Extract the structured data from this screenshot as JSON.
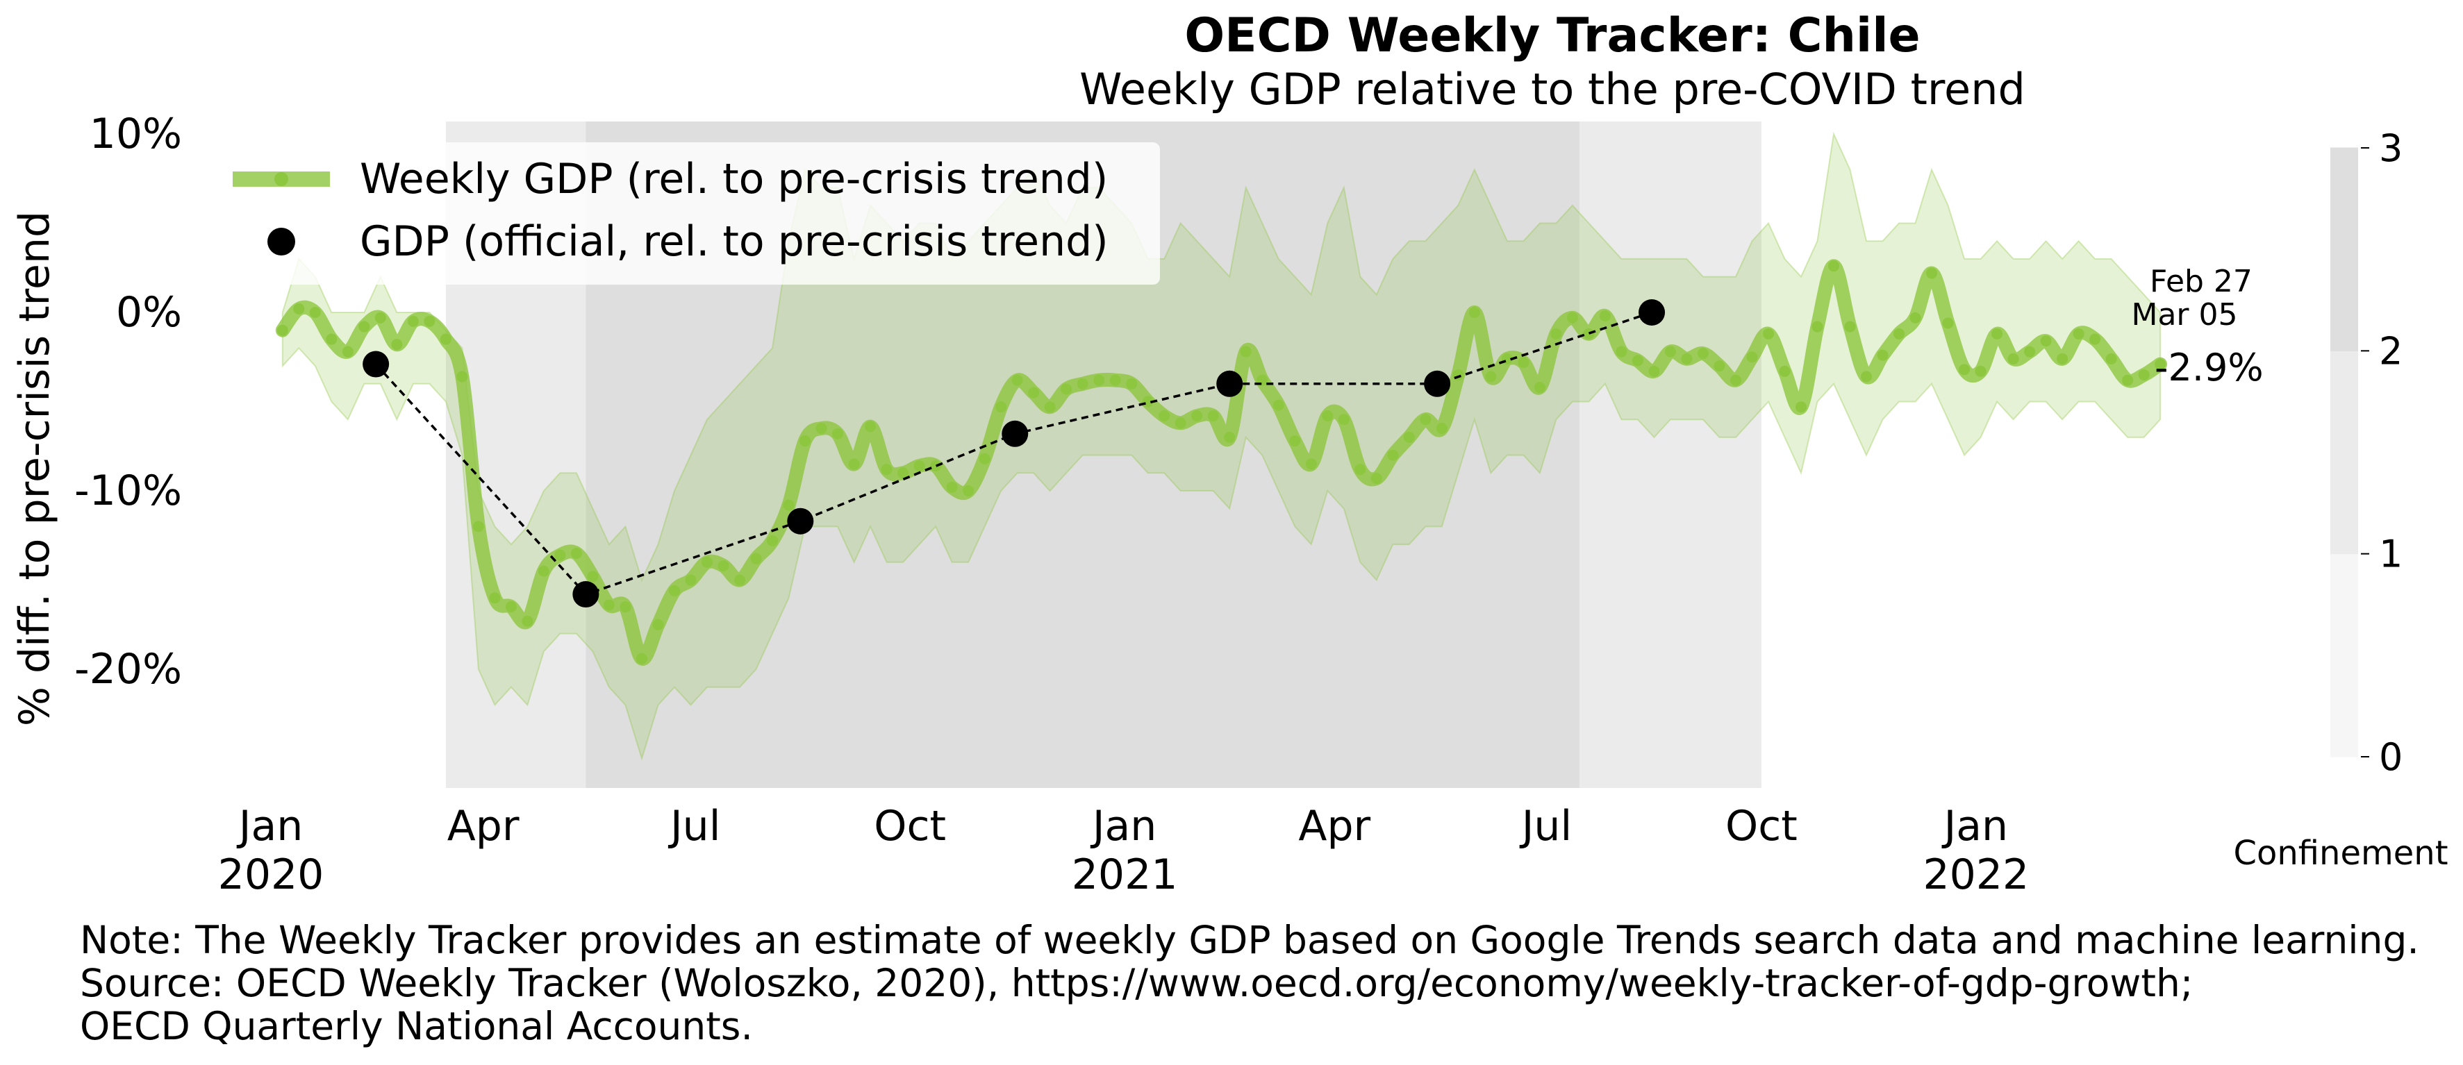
{
  "chart_data": {
    "type": "line",
    "title": "OECD Weekly Tracker: Chile",
    "subtitle": "Weekly GDP relative to the pre-COVID trend",
    "ylabel": "% diff. to pre-crisis trend",
    "ylim": [
      -27,
      10
    ],
    "y_ticks": [
      {
        "value": 10,
        "label": "10%"
      },
      {
        "value": 0,
        "label": "0%"
      },
      {
        "value": -10,
        "label": "-10%"
      },
      {
        "value": -20,
        "label": "-20%"
      }
    ],
    "x_ticks": [
      {
        "date": "2020-01-01",
        "label": "Jan",
        "label2": "2020"
      },
      {
        "date": "2020-04-01",
        "label": "Apr",
        "label2": ""
      },
      {
        "date": "2020-07-01",
        "label": "Jul",
        "label2": ""
      },
      {
        "date": "2020-10-01",
        "label": "Oct",
        "label2": ""
      },
      {
        "date": "2021-01-01",
        "label": "Jan",
        "label2": "2021"
      },
      {
        "date": "2021-04-01",
        "label": "Apr",
        "label2": ""
      },
      {
        "date": "2021-07-01",
        "label": "Jul",
        "label2": ""
      },
      {
        "date": "2021-10-01",
        "label": "Oct",
        "label2": ""
      },
      {
        "date": "2022-01-01",
        "label": "Jan",
        "label2": "2022"
      }
    ],
    "legend": {
      "placement": "top-left",
      "weekly_label": "Weekly GDP (rel. to pre-crisis trend)",
      "official_label": "GDP (official, rel. to pre-crisis trend)"
    },
    "series": [
      {
        "name": "Weekly GDP (rel. to pre-crisis trend)",
        "color": "#8dc63f",
        "start_date": "2020-01-06",
        "step_days": 7,
        "values": [
          -1.0,
          0.2,
          0.0,
          -1.5,
          -2.2,
          -0.8,
          -0.3,
          -1.8,
          -0.5,
          -0.5,
          -1.5,
          -3.6,
          -12.0,
          -16.0,
          -16.5,
          -17.3,
          -14.5,
          -13.6,
          -13.5,
          -14.8,
          -16.4,
          -16.5,
          -19.4,
          -17.5,
          -15.6,
          -15.0,
          -14.0,
          -14.2,
          -15.0,
          -13.8,
          -12.8,
          -10.8,
          -7.2,
          -6.5,
          -6.8,
          -8.5,
          -6.4,
          -8.8,
          -9.0,
          -8.6,
          -8.6,
          -9.8,
          -10.0,
          -8.2,
          -5.3,
          -3.8,
          -4.5,
          -5.3,
          -4.3,
          -4.0,
          -3.8,
          -3.8,
          -4.0,
          -5.0,
          -5.8,
          -6.2,
          -5.8,
          -5.8,
          -7.0,
          -2.2,
          -3.8,
          -5.2,
          -7.2,
          -8.5,
          -5.8,
          -6.0,
          -8.8,
          -9.3,
          -8.0,
          -7.0,
          -6.0,
          -6.5,
          -3.5,
          0.0,
          -3.6,
          -2.6,
          -2.8,
          -4.2,
          -1.2,
          -0.3,
          -1.2,
          -0.2,
          -2.2,
          -2.7,
          -3.3,
          -2.2,
          -2.6,
          -2.3,
          -3.0,
          -3.8,
          -2.5,
          -1.2,
          -3.3,
          -5.3,
          -0.8,
          2.6,
          -0.8,
          -3.6,
          -2.4,
          -1.2,
          -0.3,
          2.2,
          -0.6,
          -3.2,
          -3.3,
          -1.2,
          -2.6,
          -2.2,
          -1.6,
          -2.6,
          -1.2,
          -1.5,
          -2.6,
          -3.8,
          -3.5,
          -2.9
        ]
      },
      {
        "name": "GDP (official, rel. to pre-crisis trend)",
        "color": "#000000",
        "points": [
          {
            "date": "2020-02-15",
            "value": -2.9
          },
          {
            "date": "2020-05-15",
            "value": -15.8
          },
          {
            "date": "2020-08-15",
            "value": -11.7
          },
          {
            "date": "2020-11-15",
            "value": -6.8
          },
          {
            "date": "2021-02-15",
            "value": -4.0
          },
          {
            "date": "2021-05-15",
            "value": -4.0
          },
          {
            "date": "2021-08-15",
            "value": 0.0
          }
        ]
      }
    ],
    "band": {
      "start_date": "2020-01-06",
      "step_days": 7,
      "upper": [
        0,
        3,
        2,
        0,
        0,
        0,
        2,
        0,
        0,
        0,
        -1,
        -2,
        -10,
        -12,
        -13,
        -12,
        -10,
        -9,
        -9,
        -11,
        -13,
        -12,
        -15,
        -13,
        -10,
        -8,
        -6,
        -5,
        -4,
        -3,
        -2,
        4,
        8,
        7,
        7,
        3,
        6,
        5,
        4,
        5,
        5,
        3,
        4,
        5,
        6,
        7,
        8,
        6,
        5,
        7,
        7,
        6,
        5,
        3,
        3,
        5,
        4,
        3,
        2,
        7,
        5,
        3,
        2,
        1,
        5,
        7,
        2,
        1,
        3,
        4,
        4,
        5,
        6,
        8,
        6,
        4,
        4,
        5,
        5,
        6,
        5,
        4,
        3,
        3,
        3,
        3,
        3,
        2,
        2,
        2,
        4,
        5,
        3,
        2,
        4,
        10,
        8,
        4,
        4,
        5,
        5,
        8,
        6,
        3,
        3,
        4,
        3,
        3,
        4,
        3,
        4,
        3,
        3,
        2,
        1,
        0
      ],
      "lower": [
        -3,
        -2,
        -3,
        -5,
        -6,
        -4,
        -4,
        -6,
        -4,
        -4,
        -5,
        -8,
        -20,
        -22,
        -21,
        -22,
        -19,
        -18,
        -18,
        -19,
        -21,
        -22,
        -25,
        -22,
        -21,
        -22,
        -21,
        -21,
        -21,
        -20,
        -18,
        -16,
        -12,
        -12,
        -12,
        -14,
        -12,
        -14,
        -14,
        -13,
        -12,
        -14,
        -14,
        -12,
        -10,
        -9,
        -9,
        -10,
        -9,
        -8,
        -8,
        -8,
        -8,
        -9,
        -9,
        -10,
        -10,
        -10,
        -11,
        -7,
        -8,
        -10,
        -12,
        -13,
        -10,
        -11,
        -14,
        -15,
        -13,
        -13,
        -12,
        -12,
        -9,
        -6,
        -9,
        -8,
        -8,
        -9,
        -6,
        -5,
        -5,
        -4,
        -6,
        -6,
        -7,
        -6,
        -6,
        -6,
        -7,
        -7,
        -6,
        -5,
        -7,
        -9,
        -5,
        -4,
        -6,
        -8,
        -6,
        -5,
        -5,
        -4,
        -6,
        -8,
        -7,
        -5,
        -6,
        -5,
        -5,
        -6,
        -5,
        -5,
        -6,
        -7,
        -7,
        -6
      ]
    },
    "confinement": {
      "label": "Confinement",
      "ticks": [
        "0",
        "1",
        "2",
        "3"
      ],
      "periods": [
        {
          "start": "2020-03-16",
          "end": "2020-05-15",
          "level": 2
        },
        {
          "start": "2020-05-15",
          "end": "2021-07-15",
          "level": 3
        },
        {
          "start": "2021-07-15",
          "end": "2021-10-01",
          "level": 2
        }
      ],
      "colors": [
        "#ffffff",
        "#f6f6f6",
        "#ebebeb",
        "#dedede"
      ]
    },
    "last_value_label": "-2.9%",
    "last_dates": [
      "Feb 27",
      "Mar 05"
    ],
    "note_lines": [
      "Note: The Weekly Tracker provides an estimate of weekly GDP based on Google Trends search data and machine learning.",
      "Source: OECD Weekly Tracker (Woloszko, 2020), https://www.oecd.org/economy/weekly-tracker-of-gdp-growth;",
      "OECD Quarterly National Accounts."
    ]
  }
}
